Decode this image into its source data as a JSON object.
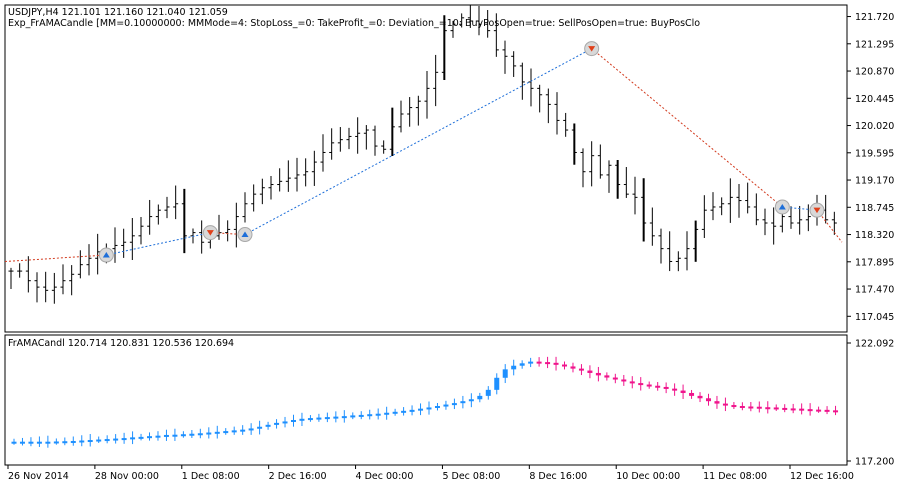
{
  "header": {
    "symbol_line": "USDJPY,H4  121.101 121.160 121.040 121.059",
    "expert_line": "Exp_FrAMACandle [MM=0.10000000: MMMode=4: StopLoss_=0: TakeProfit_=0: Deviation_=10: BuyPosOpen=true: SellPosOpen=true: BuyPosClo"
  },
  "indicator_header": "FrAMACandl 120.714 120.831 120.536 120.694",
  "colors": {
    "bull": "#1E90FF",
    "bear": "#F0148C",
    "price_bar": "#000000",
    "trade_buy_line": "#1E6FD9",
    "trade_sell_line": "#D23A1E"
  },
  "chart_data": [
    {
      "type": "ohlc",
      "name": "USDJPY,H4",
      "ylim": [
        116.8,
        121.9
      ],
      "y_ticks": [
        "121.720",
        "121.295",
        "120.870",
        "120.445",
        "120.020",
        "119.595",
        "119.170",
        "118.745",
        "118.320",
        "117.895",
        "117.470",
        "117.045"
      ],
      "closes": [
        117.75,
        117.75,
        117.6,
        117.5,
        117.45,
        117.5,
        117.6,
        117.7,
        117.85,
        117.95,
        118.05,
        118.1,
        118.15,
        118.2,
        118.3,
        118.45,
        118.6,
        118.7,
        118.75,
        118.8,
        118.3,
        118.35,
        118.2,
        118.3,
        118.35,
        118.4,
        118.6,
        118.8,
        118.95,
        119.05,
        119.1,
        119.15,
        119.2,
        119.25,
        119.3,
        119.45,
        119.6,
        119.75,
        119.8,
        119.85,
        119.9,
        119.95,
        119.7,
        119.65,
        120.0,
        120.2,
        120.3,
        120.4,
        120.6,
        120.85,
        121.5,
        121.6,
        121.7,
        121.65,
        121.6,
        121.5,
        121.2,
        121.1,
        120.95,
        120.7,
        120.6,
        120.5,
        120.35,
        120.1,
        119.95,
        119.6,
        119.3,
        119.55,
        119.25,
        119.4,
        119.1,
        118.95,
        118.9,
        118.5,
        118.3,
        118.1,
        117.9,
        117.95,
        118.1,
        118.4,
        118.7,
        118.75,
        118.8,
        118.9,
        118.85,
        118.75,
        118.55,
        118.5,
        118.45,
        118.6,
        118.5,
        118.55,
        118.6,
        118.7,
        118.55,
        118.5
      ],
      "trade_markers": [
        {
          "side": "buy",
          "bar": 12,
          "price": 118.0
        },
        {
          "side": "sell",
          "bar": 24,
          "price": 118.35
        },
        {
          "side": "buy",
          "bar": 28,
          "price": 118.32
        },
        {
          "side": "sell",
          "bar": 70,
          "price": 121.22
        },
        {
          "side": "buy",
          "bar": 94,
          "price": 118.75
        },
        {
          "side": "sell",
          "bar": 98,
          "price": 118.7
        }
      ]
    },
    {
      "type": "candlestick",
      "name": "FrAMACandl",
      "ylim": [
        117.2,
        122.092
      ],
      "y_ticks": [
        "122.092",
        "117.200"
      ],
      "x_ticks": [
        "26 Nov 2014",
        "28 Nov 00:00",
        "1 Dec 08:00",
        "2 Dec 16:00",
        "4 Dec 00:00",
        "5 Dec 08:00",
        "8 Dec 16:00",
        "10 Dec 00:00",
        "11 Dec 08:00",
        "12 Dec 16:00"
      ],
      "values": [
        118.0,
        118.0,
        118.0,
        118.0,
        118.0,
        118.01,
        118.02,
        118.03,
        118.05,
        118.07,
        118.09,
        118.11,
        118.13,
        118.15,
        118.18,
        118.2,
        118.23,
        118.25,
        118.28,
        118.29,
        118.31,
        118.33,
        118.35,
        118.38,
        118.41,
        118.44,
        118.47,
        118.5,
        118.55,
        118.62,
        118.7,
        118.78,
        118.84,
        118.9,
        118.95,
        118.98,
        119.0,
        119.02,
        119.04,
        119.06,
        119.09,
        119.11,
        119.14,
        119.16,
        119.2,
        119.24,
        119.28,
        119.32,
        119.37,
        119.42,
        119.48,
        119.54,
        119.6,
        119.68,
        119.76,
        119.9,
        120.15,
        120.65,
        121.0,
        121.15,
        121.25,
        121.32,
        121.3,
        121.27,
        121.2,
        121.12,
        121.03,
        120.95,
        120.85,
        120.75,
        120.66,
        120.58,
        120.5,
        120.43,
        120.37,
        120.32,
        120.27,
        120.2,
        120.12,
        120.02,
        119.9,
        119.8,
        119.68,
        119.58,
        119.52,
        119.48,
        119.46,
        119.45,
        119.43,
        119.42,
        119.4,
        119.38,
        119.37,
        119.35,
        119.33,
        119.32,
        119.3,
        119.29
      ],
      "bull_until_index": 61
    }
  ]
}
